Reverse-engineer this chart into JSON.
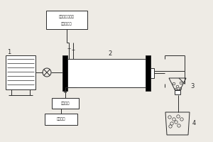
{
  "bg_color": "#eeebe5",
  "line_color": "#2a2a2a",
  "label1": "1",
  "label2": "2",
  "label3": "3",
  "label4": "4",
  "top_box_line1": "精盐、硕盐、纱",
  "top_box_line2": "盐混合液罐",
  "bottom_box1": "进料液罐",
  "bottom_box2": "核层温度"
}
